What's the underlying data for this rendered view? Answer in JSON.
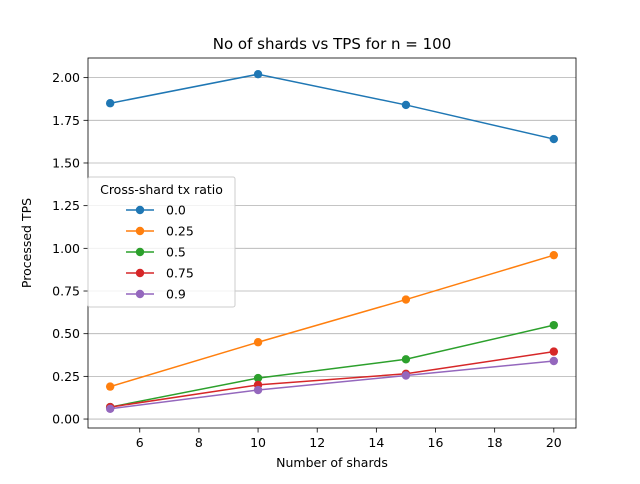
{
  "chart_data": {
    "type": "line",
    "title": "No of shards vs TPS for n = 100",
    "xlabel": "Number of shards",
    "ylabel": "Processed TPS",
    "x": [
      5,
      10,
      15,
      20
    ],
    "xlim": [
      4.25,
      20.75
    ],
    "ylim": [
      -0.0525,
      2.115
    ],
    "xticks": [
      6,
      8,
      10,
      12,
      14,
      16,
      18,
      20
    ],
    "yticks": [
      0.0,
      0.25,
      0.5,
      0.75,
      1.0,
      1.25,
      1.5,
      1.75,
      2.0
    ],
    "xtick_labels": [
      "6",
      "8",
      "10",
      "12",
      "14",
      "16",
      "18",
      "20"
    ],
    "ytick_labels": [
      "0.00",
      "0.25",
      "0.50",
      "0.75",
      "1.00",
      "1.25",
      "1.50",
      "1.75",
      "2.00"
    ],
    "grid": "horizontal",
    "legend": {
      "title": "Cross-shard tx ratio",
      "placement": "center-left"
    },
    "series": [
      {
        "name": "0.0",
        "color": "#1f77b4",
        "values": [
          1.85,
          2.02,
          1.84,
          1.64
        ]
      },
      {
        "name": "0.25",
        "color": "#ff7f0e",
        "values": [
          0.19,
          0.45,
          0.7,
          0.96
        ]
      },
      {
        "name": "0.5",
        "color": "#2ca02c",
        "values": [
          0.07,
          0.24,
          0.35,
          0.55
        ]
      },
      {
        "name": "0.75",
        "color": "#d62728",
        "values": [
          0.07,
          0.2,
          0.265,
          0.395
        ]
      },
      {
        "name": "0.9",
        "color": "#9467bd",
        "values": [
          0.06,
          0.17,
          0.255,
          0.34
        ]
      }
    ]
  }
}
